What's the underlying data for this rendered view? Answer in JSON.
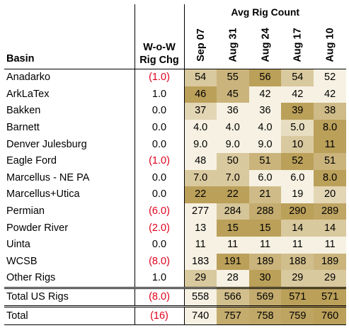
{
  "chart_data": {
    "type": "table",
    "title": "Avg Rig Count",
    "row_header": "Basin",
    "change_header": [
      "W-o-W",
      "Rig Chg"
    ],
    "columns": [
      "Sep 07",
      "Aug 31",
      "Aug 24",
      "Aug 17",
      "Aug 10"
    ],
    "colors": {
      "negative_text": "#e0001b",
      "heat_low": "#f6f1e2",
      "heat_high": "#bba05a"
    },
    "rows": [
      {
        "basin": "Anadarko",
        "change": "(1.0)",
        "negative": true,
        "values": [
          54,
          55,
          56,
          54,
          52
        ]
      },
      {
        "basin": "ArkLaTex",
        "change": "1.0",
        "negative": false,
        "values": [
          46,
          45,
          42,
          42,
          42
        ]
      },
      {
        "basin": "Bakken",
        "change": "0.0",
        "negative": false,
        "values": [
          37,
          36,
          36,
          39,
          38
        ]
      },
      {
        "basin": "Barnett",
        "change": "0.0",
        "negative": false,
        "values": [
          "4.0",
          "4.0",
          "4.0",
          "5.0",
          "8.0"
        ]
      },
      {
        "basin": "Denver Julesburg",
        "change": "0.0",
        "negative": false,
        "values": [
          "9.0",
          "9.0",
          "9.0",
          10,
          11
        ]
      },
      {
        "basin": "Eagle Ford",
        "change": "(1.0)",
        "negative": true,
        "values": [
          48,
          50,
          51,
          52,
          51
        ]
      },
      {
        "basin": "Marcellus - NE PA",
        "change": "0.0",
        "negative": false,
        "values": [
          "7.0",
          "7.0",
          "6.0",
          "6.0",
          "8.0"
        ]
      },
      {
        "basin": "Marcellus+Utica",
        "change": "0.0",
        "negative": false,
        "values": [
          22,
          22,
          21,
          19,
          20
        ]
      },
      {
        "basin": "Permian",
        "change": "(6.0)",
        "negative": true,
        "values": [
          277,
          284,
          288,
          290,
          289
        ]
      },
      {
        "basin": "Powder River",
        "change": "(2.0)",
        "negative": true,
        "values": [
          13,
          15,
          15,
          14,
          14
        ]
      },
      {
        "basin": "Uinta",
        "change": "0.0",
        "negative": false,
        "values": [
          11,
          11,
          11,
          11,
          11
        ]
      },
      {
        "basin": "WCSB",
        "change": "(8.0)",
        "negative": true,
        "values": [
          183,
          191,
          189,
          188,
          189
        ]
      },
      {
        "basin": "Other Rigs",
        "change": "1.0",
        "negative": false,
        "values": [
          29,
          28,
          30,
          29,
          29
        ]
      },
      {
        "basin": "Total US Rigs",
        "change": "(8.0)",
        "negative": true,
        "values": [
          558,
          566,
          569,
          571,
          571
        ]
      },
      {
        "basin": "Total",
        "change": "(16)",
        "negative": true,
        "values": [
          740,
          757,
          758,
          759,
          760
        ]
      }
    ]
  }
}
